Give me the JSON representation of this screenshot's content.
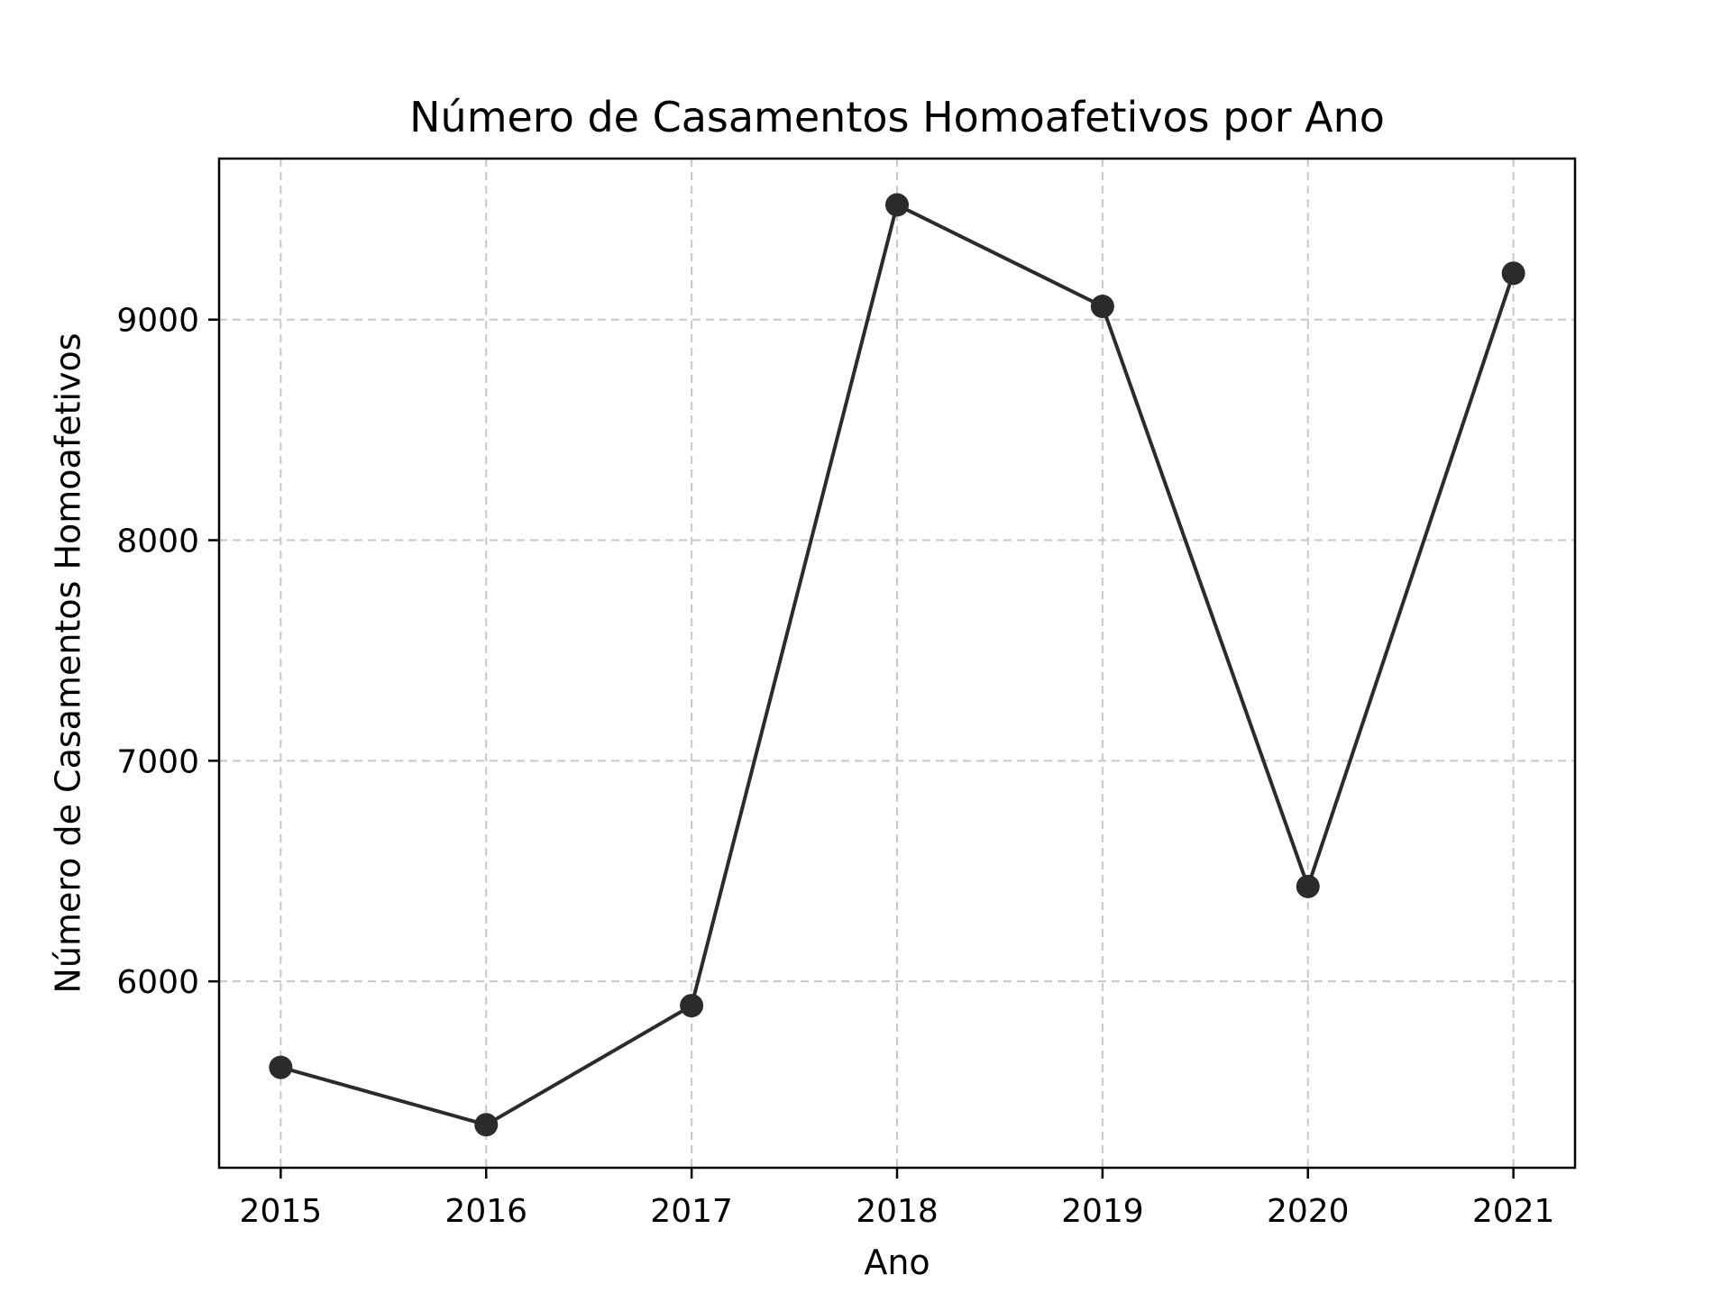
{
  "chart_data": {
    "type": "line",
    "title": "Número de Casamentos Homoafetivos por Ano",
    "xlabel": "Ano",
    "ylabel": "Número de Casamentos Homoafetivos",
    "x": [
      2015,
      2016,
      2017,
      2018,
      2019,
      2020,
      2021
    ],
    "x_tick_labels": [
      "2015",
      "2016",
      "2017",
      "2018",
      "2019",
      "2020",
      "2021"
    ],
    "y_ticks": [
      6000,
      7000,
      8000,
      9000
    ],
    "y_tick_labels": [
      "6000",
      "7000",
      "8000",
      "9000"
    ],
    "xlim": [
      2014.7,
      2021.3
    ],
    "ylim": [
      5155,
      9730
    ],
    "grid": true,
    "legend": false,
    "series": [
      {
        "values": [
          5610,
          5350,
          5890,
          9520,
          9060,
          6430,
          9210
        ],
        "color": "#2b2b2b",
        "marker": "circle"
      }
    ]
  }
}
